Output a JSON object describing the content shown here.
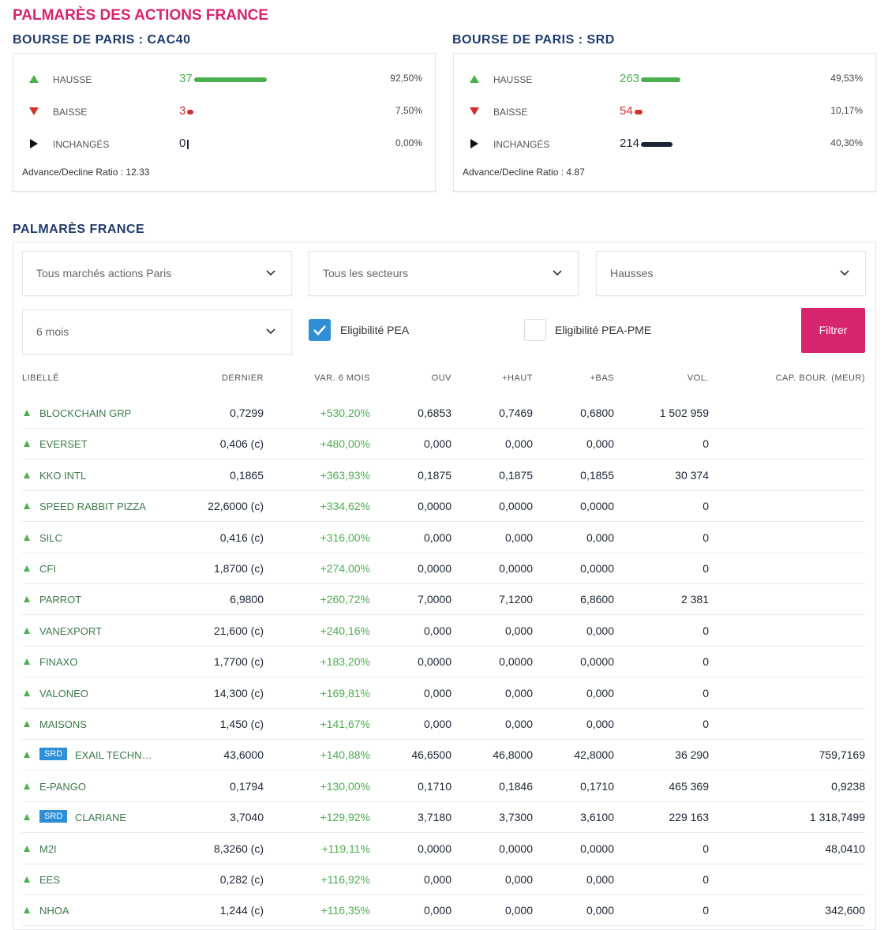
{
  "header": {
    "title": "PALMARÈS DES ACTIONS FRANCE"
  },
  "markets": [
    {
      "title": "BOURSE DE PARIS : CAC40",
      "rows": [
        {
          "label": "HAUSSE",
          "count": 37,
          "pct": "92,50%",
          "color": "#4caf50"
        },
        {
          "label": "BAISSE",
          "count": 3,
          "pct": "7,50%",
          "color": "#d32f2f"
        },
        {
          "label": "INCHANGÉS",
          "count": 0,
          "pct": "0,00%",
          "color": "#1b2535"
        }
      ],
      "ratio": "Advance/Decline Ratio : 12.33"
    },
    {
      "title": "BOURSE DE PARIS : SRD",
      "rows": [
        {
          "label": "HAUSSE",
          "count": 263,
          "pct": "49,53%",
          "color": "#4caf50"
        },
        {
          "label": "BAISSE",
          "count": 54,
          "pct": "10,17%",
          "color": "#d32f2f"
        },
        {
          "label": "INCHANGÉS",
          "count": 214,
          "pct": "40,30%",
          "color": "#1b2535"
        }
      ],
      "ratio": "Advance/Decline Ratio : 4.87"
    }
  ],
  "palmares": {
    "title": "PALMARÈS FRANCE",
    "filters": {
      "dropdowns": [
        "Tous marchés actions Paris",
        "Tous les secteurs",
        "Hausses",
        "6 mois"
      ],
      "checkboxes": [
        {
          "label": "Eligibilité PEA",
          "checked": true
        },
        {
          "label": "Eligibilité PEA-PME",
          "checked": false
        }
      ],
      "button": "Filtrer"
    },
    "table": {
      "columns": [
        "LIBELLÉ",
        "DERNIER",
        "VAR. 6 MOIS",
        "OUV",
        "+HAUT",
        "+BAS",
        "VOL.",
        "CAP. BOUR. (MEUR)"
      ],
      "rows": [
        {
          "name": "BLOCKCHAIN GRP",
          "cells": [
            "0,7299",
            "+530,20%",
            "0,6853",
            "0,7469",
            "0,6800",
            "1 502 959"
          ]
        },
        {
          "name": "EVERSET",
          "cells": [
            "0,406 (c)",
            "+480,00%",
            "0,000",
            "0,000",
            "0,000",
            "0"
          ]
        },
        {
          "name": "KKO INTL",
          "cells": [
            "0,1865",
            "+363,93%",
            "0,1875",
            "0,1875",
            "0,1855",
            "30 374"
          ]
        },
        {
          "name": "SPEED RABBIT PIZZA",
          "cells": [
            "22,6000 (c)",
            "+334,62%",
            "0,0000",
            "0,0000",
            "0,0000",
            "0"
          ]
        },
        {
          "name": "SILC",
          "cells": [
            "0,416 (c)",
            "+316,00%",
            "0,000",
            "0,000",
            "0,000",
            "0"
          ]
        },
        {
          "name": "CFI",
          "cells": [
            "1,8700 (c)",
            "+274,00%",
            "0,0000",
            "0,0000",
            "0,0000",
            "0"
          ]
        },
        {
          "name": "PARROT",
          "cells": [
            "6,9800",
            "+260,72%",
            "7,0000",
            "7,1200",
            "6,8600",
            "2 381"
          ]
        },
        {
          "name": "VANEXPORT",
          "cells": [
            "21,600 (c)",
            "+240,16%",
            "0,000",
            "0,000",
            "0,000",
            "0"
          ]
        },
        {
          "name": "FINAXO",
          "cells": [
            "1,7700 (c)",
            "+183,20%",
            "0,0000",
            "0,0000",
            "0,0000",
            "0"
          ]
        },
        {
          "name": "VALONEO",
          "cells": [
            "14,300 (c)",
            "+169,81%",
            "0,000",
            "0,000",
            "0,000",
            "0"
          ]
        },
        {
          "name": "MAISONS",
          "cells": [
            "1,450 (c)",
            "+141,67%",
            "0,000",
            "0,000",
            "0,000",
            "0"
          ]
        },
        {
          "name": "EXAIL TECHN…",
          "badge": "SRD",
          "cells": [
            "43,6000",
            "+140,88%",
            "46,6500",
            "46,8000",
            "42,8000",
            "36 290",
            "759,7169"
          ]
        },
        {
          "name": "E-PANGO",
          "cells": [
            "0,1794",
            "+130,00%",
            "0,1710",
            "0,1846",
            "0,1710",
            "465 369",
            "0,9238"
          ]
        },
        {
          "name": "CLARIANE",
          "badge": "SRD",
          "cells": [
            "3,7040",
            "+129,92%",
            "3,7180",
            "3,7300",
            "3,6100",
            "229 163",
            "1 318,7499"
          ]
        },
        {
          "name": "M2I",
          "cells": [
            "8,3260 (c)",
            "+119,11%",
            "0,0000",
            "0,0000",
            "0,0000",
            "0",
            "48,0410"
          ]
        },
        {
          "name": "EES",
          "cells": [
            "0,282 (c)",
            "+116,92%",
            "0,000",
            "0,000",
            "0,000",
            "0"
          ]
        },
        {
          "name": "NHOA",
          "cells": [
            "1,244 (c)",
            "+116,35%",
            "0,000",
            "0,000",
            "0,000",
            "0",
            "342,600"
          ]
        }
      ]
    }
  }
}
